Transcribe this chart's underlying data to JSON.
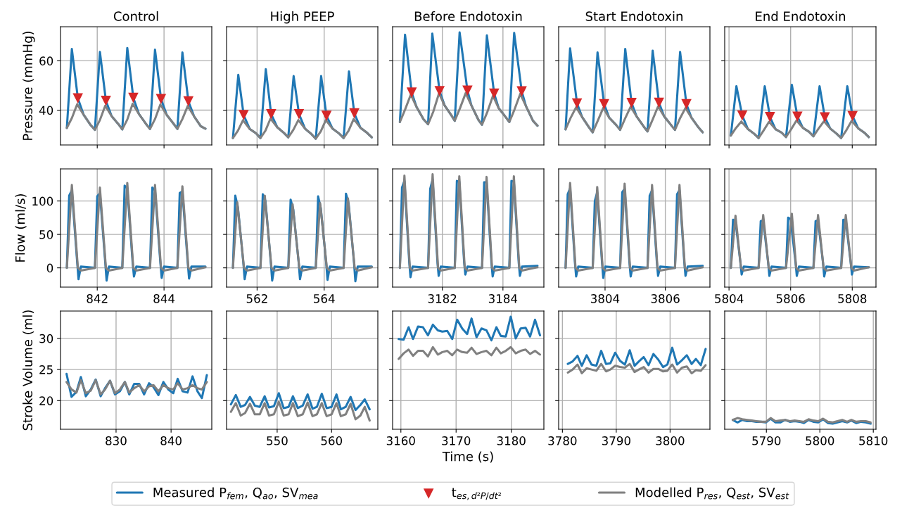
{
  "chart_data": [
    {
      "type": "line",
      "title": "Control",
      "ylabel": "Pressure (mmHg)",
      "xlim": [
        840.9,
        845.43
      ],
      "ylim": [
        25.9,
        73.8
      ],
      "xticks": [
        842,
        844
      ],
      "yticks": [
        40,
        60
      ],
      "grid": true,
      "tick_labels": "y",
      "legend": "bottom",
      "series": [
        {
          "name": "Measured P$_{fem}$, Q$_{ao}$, SV$_{mea}$",
          "color": "#1f77b4",
          "x": [
            841.09,
            841.24,
            841.42,
            841.59,
            841.79,
            841.93,
            842.08,
            842.26,
            842.43,
            842.63,
            842.75,
            842.9,
            843.08,
            843.25,
            843.45,
            843.58,
            843.73,
            843.91,
            844.08,
            844.28,
            844.4,
            844.55,
            844.73,
            844.9,
            845.1,
            845.24
          ],
          "values": [
            32.8,
            64.8,
            44.8,
            38.2,
            34.2,
            32.0,
            63.6,
            43.8,
            37.6,
            34.4,
            32.2,
            65.2,
            45.0,
            38.4,
            34.6,
            32.4,
            64.5,
            44.5,
            38.1,
            34.6,
            32.4,
            63.4,
            43.6,
            37.5,
            33.5,
            32.5
          ]
        },
        {
          "name": "t$_{es,d²P/dt²}$",
          "type": "scatter",
          "marker": "triangle",
          "color": "#d62728",
          "x": [
            841.42,
            842.26,
            843.08,
            843.91,
            844.73
          ],
          "values": [
            44.8,
            43.8,
            45.0,
            44.5,
            43.6
          ]
        },
        {
          "name": "Modelled P$_{res}$, Q$_{est}$, SV$_{est}$",
          "color": "#808080",
          "x": [
            841.09,
            841.24,
            841.4,
            841.59,
            841.79,
            841.93,
            842.08,
            842.24,
            842.43,
            842.63,
            842.75,
            842.9,
            843.06,
            843.25,
            843.45,
            843.58,
            843.73,
            843.89,
            844.08,
            844.28,
            844.4,
            844.55,
            844.71,
            844.9,
            845.1,
            845.24
          ],
          "values": [
            32.8,
            36.8,
            42.4,
            38.2,
            34.2,
            32.0,
            36.0,
            41.8,
            37.6,
            34.4,
            32.2,
            36.2,
            42.6,
            38.4,
            34.6,
            32.4,
            36.4,
            42.3,
            38.1,
            34.6,
            32.4,
            36.4,
            41.7,
            37.5,
            33.5,
            32.5
          ]
        }
      ]
    },
    {
      "type": "line",
      "title": "High PEEP",
      "xlim": [
        561.09,
        565.6
      ],
      "ylim": [
        25.9,
        73.8
      ],
      "xticks": [
        562,
        564
      ],
      "yticks": [
        40,
        60
      ],
      "grid": true,
      "tick_labels": false,
      "series": [
        {
          "color": "#1f77b4",
          "x": [
            561.28,
            561.44,
            561.6,
            561.78,
            561.98,
            562.1,
            562.26,
            562.42,
            562.6,
            562.8,
            562.93,
            563.09,
            563.25,
            563.43,
            563.63,
            563.75,
            563.91,
            564.07,
            564.25,
            564.45,
            564.58,
            564.74,
            564.9,
            565.08,
            565.28,
            565.42
          ],
          "values": [
            28.7,
            54.3,
            38.0,
            32.4,
            30.5,
            28.7,
            56.6,
            38.4,
            33.1,
            30.8,
            29.0,
            53.8,
            38.4,
            32.5,
            30.2,
            28.4,
            53.8,
            37.7,
            32.5,
            30.5,
            28.7,
            55.7,
            38.7,
            32.9,
            30.8,
            29.0
          ]
        },
        {
          "type": "scatter",
          "marker": "triangle",
          "color": "#d62728",
          "x": [
            561.6,
            562.42,
            563.25,
            564.07,
            564.9
          ],
          "values": [
            38.0,
            38.4,
            38.4,
            37.7,
            38.7
          ]
        },
        {
          "color": "#808080",
          "x": [
            561.28,
            561.43,
            561.58,
            561.78,
            561.98,
            562.1,
            562.25,
            562.4,
            562.6,
            562.8,
            562.93,
            563.08,
            563.23,
            563.43,
            563.63,
            563.75,
            563.9,
            564.05,
            564.25,
            564.45,
            564.58,
            564.73,
            564.88,
            565.08,
            565.28,
            565.42
          ],
          "values": [
            28.7,
            31.7,
            35.9,
            32.4,
            30.5,
            28.7,
            31.7,
            36.6,
            33.1,
            30.8,
            29.0,
            32.0,
            36.0,
            32.5,
            30.2,
            28.4,
            31.4,
            36.0,
            32.5,
            30.5,
            28.7,
            31.7,
            36.4,
            32.9,
            30.8,
            29.0
          ]
        }
      ]
    },
    {
      "type": "line",
      "title": "Before Endotoxin",
      "xlim": [
        3180.36,
        3185.35
      ],
      "ylim": [
        25.9,
        73.8
      ],
      "xticks": [
        3182,
        3184
      ],
      "yticks": [
        40,
        60
      ],
      "grid": true,
      "tick_labels": false,
      "series": [
        {
          "color": "#1f77b4",
          "x": [
            3180.6,
            3180.77,
            3180.99,
            3181.15,
            3181.38,
            3181.53,
            3181.67,
            3181.91,
            3182.08,
            3182.31,
            3182.41,
            3182.57,
            3182.83,
            3182.96,
            3183.19,
            3183.31,
            3183.47,
            3183.71,
            3183.86,
            3184.09,
            3184.21,
            3184.37,
            3184.62,
            3184.76,
            3184.99,
            3185.14
          ],
          "values": [
            35.2,
            70.6,
            47.1,
            41.3,
            36.3,
            34.3,
            71.0,
            47.7,
            41.8,
            37.7,
            35.7,
            71.5,
            47.9,
            41.9,
            36.1,
            34.1,
            70.3,
            46.7,
            40.8,
            37.2,
            35.2,
            71.3,
            47.6,
            41.6,
            35.7,
            33.7
          ]
        },
        {
          "type": "scatter",
          "marker": "triangle",
          "color": "#d62728",
          "x": [
            3180.99,
            3181.91,
            3182.83,
            3183.71,
            3184.62
          ],
          "values": [
            47.1,
            47.7,
            47.9,
            46.7,
            47.6
          ]
        },
        {
          "color": "#808080",
          "x": [
            3180.6,
            3180.77,
            3180.96,
            3181.15,
            3181.38,
            3181.53,
            3181.7,
            3181.89,
            3182.08,
            3182.31,
            3182.41,
            3182.58,
            3182.77,
            3182.96,
            3183.19,
            3183.31,
            3183.48,
            3183.67,
            3183.86,
            3184.09,
            3184.21,
            3184.38,
            3184.57,
            3184.76,
            3184.99,
            3185.14
          ],
          "values": [
            35.2,
            40.2,
            46.3,
            41.3,
            36.3,
            34.3,
            39.3,
            46.8,
            41.8,
            37.7,
            35.7,
            40.7,
            46.9,
            41.9,
            36.1,
            34.1,
            39.1,
            45.8,
            40.8,
            37.2,
            35.2,
            40.2,
            46.6,
            41.6,
            35.7,
            33.7
          ]
        }
      ]
    },
    {
      "type": "line",
      "title": "Start Endotoxin",
      "xlim": [
        3802.46,
        3807.48
      ],
      "ylim": [
        25.9,
        73.8
      ],
      "xticks": [
        3804,
        3806
      ],
      "yticks": [
        40,
        60
      ],
      "grid": true,
      "tick_labels": false,
      "series": [
        {
          "color": "#1f77b4",
          "x": [
            3802.69,
            3802.84,
            3803.07,
            3803.24,
            3803.47,
            3803.59,
            3803.75,
            3803.97,
            3804.14,
            3804.37,
            3804.5,
            3804.67,
            3804.88,
            3805.05,
            3805.28,
            3805.41,
            3805.58,
            3805.79,
            3805.96,
            3806.19,
            3806.32,
            3806.49,
            3806.7,
            3806.87,
            3807.1,
            3807.24
          ],
          "values": [
            32.2,
            65.0,
            42.7,
            37.2,
            33.0,
            31.0,
            63.4,
            42.4,
            36.9,
            34.0,
            32.0,
            64.8,
            42.9,
            37.4,
            33.4,
            31.4,
            64.1,
            43.0,
            37.5,
            34.0,
            32.0,
            63.6,
            42.4,
            36.9,
            33.0,
            31.0
          ]
        },
        {
          "type": "scatter",
          "marker": "triangle",
          "color": "#d62728",
          "x": [
            3803.07,
            3803.97,
            3804.88,
            3805.79,
            3806.7
          ],
          "values": [
            42.7,
            42.4,
            42.9,
            43.0,
            42.4
          ]
        },
        {
          "color": "#808080",
          "x": [
            3802.69,
            3802.85,
            3803.04,
            3803.24,
            3803.47,
            3803.59,
            3803.75,
            3803.94,
            3804.14,
            3804.37,
            3804.5,
            3804.66,
            3804.85,
            3805.05,
            3805.28,
            3805.41,
            3805.57,
            3805.76,
            3805.96,
            3806.19,
            3806.32,
            3806.48,
            3806.67,
            3806.87,
            3807.1,
            3807.24
          ],
          "values": [
            32.2,
            36.7,
            41.2,
            37.2,
            33.0,
            31.0,
            35.5,
            40.9,
            36.9,
            34.0,
            32.0,
            36.5,
            41.4,
            37.4,
            33.4,
            31.4,
            35.9,
            41.5,
            37.5,
            34.0,
            32.0,
            36.5,
            40.9,
            36.9,
            33.0,
            31.0
          ]
        }
      ]
    },
    {
      "type": "line",
      "title": "End Endotoxin",
      "xlim": [
        5803.86,
        5808.77
      ],
      "ylim": [
        25.9,
        73.8
      ],
      "xticks": [
        5804,
        5806,
        5808
      ],
      "yticks": [
        40,
        60
      ],
      "grid": true,
      "tick_labels": false,
      "series": [
        {
          "color": "#1f77b4",
          "x": [
            5804.06,
            5804.24,
            5804.43,
            5804.61,
            5804.81,
            5804.96,
            5805.16,
            5805.33,
            5805.51,
            5805.71,
            5805.85,
            5806.04,
            5806.22,
            5806.4,
            5806.6,
            5806.74,
            5806.94,
            5807.11,
            5807.29,
            5807.49,
            5807.64,
            5807.84,
            5808.01,
            5808.19,
            5808.39,
            5808.54
          ],
          "values": [
            29.7,
            49.7,
            37.8,
            32.4,
            30.5,
            28.7,
            49.7,
            37.2,
            32.3,
            30.9,
            29.1,
            50.3,
            37.4,
            32.8,
            31.2,
            29.4,
            49.7,
            37.1,
            32.5,
            30.5,
            28.7,
            49.7,
            37.6,
            32.7,
            30.9,
            29.1
          ]
        },
        {
          "type": "scatter",
          "marker": "triangle",
          "color": "#d62728",
          "x": [
            5804.43,
            5805.33,
            5806.22,
            5807.11,
            5808.01
          ],
          "values": [
            37.8,
            37.2,
            37.4,
            37.1,
            37.6
          ]
        },
        {
          "color": "#808080",
          "x": [
            5804.06,
            5804.22,
            5804.4,
            5804.61,
            5804.81,
            5804.96,
            5805.12,
            5805.3,
            5805.51,
            5805.71,
            5805.85,
            5806.01,
            5806.19,
            5806.4,
            5806.6,
            5806.74,
            5806.9,
            5807.08,
            5807.29,
            5807.49,
            5807.64,
            5807.8,
            5807.98,
            5808.19,
            5808.39,
            5808.54
          ],
          "values": [
            29.7,
            32.7,
            35.4,
            32.4,
            30.5,
            28.7,
            31.7,
            35.3,
            32.3,
            30.9,
            29.1,
            32.1,
            35.8,
            32.8,
            31.2,
            29.4,
            32.4,
            35.5,
            32.5,
            30.5,
            28.7,
            31.7,
            35.7,
            32.7,
            30.9,
            29.1
          ]
        }
      ]
    },
    {
      "type": "line",
      "ylabel": "Flow (ml/s)",
      "xlim": [
        840.9,
        845.43
      ],
      "ylim": [
        -28.8,
        148
      ],
      "xticks": [
        842,
        844
      ],
      "yticks": [
        0,
        50,
        100
      ],
      "grid": true,
      "series": [
        {
          "color": "#1f77b4",
          "x": [
            841.09,
            841.16,
            841.24,
            841.4,
            841.44,
            841.51,
            841.93,
            842.0,
            842.08,
            842.24,
            842.28,
            842.35,
            842.75,
            842.82,
            842.9,
            843.06,
            843.1,
            843.17,
            843.58,
            843.65,
            843.73,
            843.89,
            843.93,
            844.0,
            844.4,
            844.47,
            844.55,
            844.71,
            844.75,
            844.82,
            845.24
          ],
          "values": [
            0,
            108,
            116,
            8,
            -17,
            2,
            0,
            107,
            112,
            8,
            -19,
            2,
            0,
            123,
            119,
            8,
            -13,
            2,
            0,
            120,
            116,
            8,
            -15,
            2,
            0,
            112,
            114,
            8,
            -16,
            2,
            2
          ]
        },
        {
          "color": "#808080",
          "x": [
            841.09,
            841.24,
            841.42,
            841.51,
            841.93,
            842.08,
            842.26,
            842.35,
            842.75,
            842.9,
            843.08,
            843.17,
            843.58,
            843.73,
            843.91,
            844.0,
            844.4,
            844.55,
            844.73,
            844.82,
            845.24
          ],
          "values": [
            0,
            124,
            0,
            -4,
            0,
            120,
            0,
            -4,
            0,
            127,
            0,
            -4,
            0,
            124,
            0,
            -4,
            0,
            122,
            0,
            -4,
            1
          ]
        }
      ]
    },
    {
      "type": "line",
      "xlim": [
        561.09,
        565.6
      ],
      "ylim": [
        -28.8,
        148
      ],
      "xticks": [
        562,
        564
      ],
      "yticks": [
        0,
        50,
        100
      ],
      "grid": true,
      "tick_labels": "x",
      "series": [
        {
          "color": "#1f77b4",
          "x": [
            561.28,
            561.35,
            561.43,
            561.59,
            561.63,
            561.7,
            562.1,
            562.17,
            562.25,
            562.41,
            562.45,
            562.52,
            562.93,
            563.0,
            563.08,
            563.24,
            563.28,
            563.35,
            563.75,
            563.82,
            563.9,
            564.06,
            564.1,
            564.17,
            564.58,
            564.65,
            564.73,
            564.89,
            564.93,
            565.0,
            565.42
          ],
          "values": [
            0,
            108,
            90,
            8,
            -17,
            2,
            0,
            110,
            100,
            8,
            -19,
            2,
            0,
            102,
            87,
            8,
            -17,
            2,
            0,
            107,
            89,
            8,
            -18,
            2,
            0,
            111,
            96,
            8,
            -20,
            2,
            2
          ]
        },
        {
          "color": "#808080",
          "x": [
            561.28,
            561.41,
            561.61,
            561.7,
            562.1,
            562.23,
            562.43,
            562.52,
            562.93,
            563.06,
            563.26,
            563.35,
            563.75,
            563.88,
            564.08,
            564.17,
            564.58,
            564.71,
            564.91,
            565.0,
            565.42
          ],
          "values": [
            0,
            98,
            0,
            -4,
            0,
            108,
            0,
            -4,
            0,
            95,
            0,
            -4,
            0,
            97,
            0,
            -4,
            0,
            104,
            0,
            -4,
            1
          ]
        }
      ]
    },
    {
      "type": "line",
      "xlim": [
        3180.36,
        3185.35
      ],
      "ylim": [
        -28.8,
        148
      ],
      "xticks": [
        3182,
        3184
      ],
      "yticks": [
        0,
        50,
        100
      ],
      "grid": true,
      "tick_labels": "x",
      "series": [
        {
          "color": "#1f77b4",
          "x": [
            3180.6,
            3180.67,
            3180.75,
            3180.91,
            3180.95,
            3181.02,
            3181.53,
            3181.6,
            3181.68,
            3181.84,
            3181.88,
            3181.95,
            3182.41,
            3182.48,
            3182.56,
            3182.72,
            3182.76,
            3182.83,
            3183.31,
            3183.38,
            3183.46,
            3183.62,
            3183.66,
            3183.73,
            3184.21,
            3184.28,
            3184.36,
            3184.52,
            3184.56,
            3184.63,
            3185.14
          ],
          "values": [
            0,
            120,
            130,
            8,
            -14,
            2,
            0,
            118,
            132,
            8,
            -12,
            2,
            0,
            130,
            129,
            8,
            -10,
            2,
            0,
            128,
            128,
            8,
            -13,
            2,
            0,
            130,
            129,
            8,
            -12,
            2,
            3
          ]
        },
        {
          "color": "#808080",
          "x": [
            3180.6,
            3180.75,
            3180.93,
            3181.02,
            3181.53,
            3181.68,
            3181.86,
            3181.95,
            3182.41,
            3182.56,
            3182.74,
            3182.83,
            3183.31,
            3183.46,
            3183.64,
            3183.73,
            3184.21,
            3184.36,
            3184.54,
            3184.63,
            3185.14
          ],
          "values": [
            0,
            138,
            0,
            -4,
            0,
            140,
            0,
            -4,
            0,
            137,
            0,
            -4,
            0,
            136,
            0,
            -4,
            0,
            137,
            0,
            -4,
            1
          ]
        }
      ]
    },
    {
      "type": "line",
      "xlim": [
        3802.46,
        3807.48
      ],
      "ylim": [
        -28.8,
        148
      ],
      "xticks": [
        3804,
        3806
      ],
      "yticks": [
        0,
        50,
        100
      ],
      "grid": true,
      "tick_labels": "x",
      "series": [
        {
          "color": "#1f77b4",
          "x": [
            3802.69,
            3802.76,
            3802.84,
            3803.0,
            3803.04,
            3803.11,
            3803.59,
            3803.66,
            3803.74,
            3803.9,
            3803.94,
            3804.01,
            3804.5,
            3804.57,
            3804.65,
            3804.81,
            3804.85,
            3804.92,
            3805.41,
            3805.48,
            3805.56,
            3805.72,
            3805.76,
            3805.83,
            3806.32,
            3806.39,
            3806.47,
            3806.63,
            3806.67,
            3806.74,
            3807.24
          ],
          "values": [
            0,
            110,
            119,
            8,
            -13,
            2,
            0,
            100,
            113,
            8,
            -15,
            2,
            0,
            113,
            118,
            8,
            -13,
            2,
            0,
            108,
            116,
            8,
            -12,
            2,
            0,
            110,
            116,
            8,
            -12,
            2,
            3
          ]
        },
        {
          "color": "#808080",
          "x": [
            3802.69,
            3802.84,
            3803.02,
            3803.11,
            3803.59,
            3803.74,
            3803.92,
            3804.01,
            3804.5,
            3804.65,
            3804.83,
            3804.92,
            3805.41,
            3805.56,
            3805.74,
            3805.83,
            3806.32,
            3806.47,
            3806.65,
            3806.74,
            3807.24
          ],
          "values": [
            0,
            127,
            0,
            -4,
            0,
            121,
            0,
            -4,
            0,
            126,
            0,
            -4,
            0,
            124,
            0,
            -4,
            0,
            124,
            0,
            -4,
            1
          ]
        }
      ]
    },
    {
      "type": "line",
      "xlim": [
        5803.86,
        5808.77
      ],
      "ylim": [
        -28.8,
        148
      ],
      "xticks": [
        5804,
        5806,
        5808
      ],
      "yticks": [
        0,
        50,
        100
      ],
      "grid": true,
      "tick_labels": "x",
      "series": [
        {
          "color": "#1f77b4",
          "x": [
            5804.06,
            5804.13,
            5804.21,
            5804.37,
            5804.41,
            5804.48,
            5804.96,
            5805.03,
            5805.11,
            5805.27,
            5805.31,
            5805.38,
            5805.85,
            5805.92,
            5806.0,
            5806.16,
            5806.2,
            5806.27,
            5806.74,
            5806.81,
            5806.89,
            5807.05,
            5807.09,
            5807.16,
            5807.64,
            5807.71,
            5807.79,
            5807.95,
            5807.99,
            5808.06,
            5808.54
          ],
          "values": [
            0,
            72,
            70,
            8,
            -10,
            2,
            0,
            70,
            71,
            8,
            -12,
            2,
            0,
            75,
            73,
            8,
            -12,
            2,
            0,
            70,
            71,
            8,
            -13,
            2,
            0,
            72,
            71,
            8,
            -10,
            2,
            1
          ]
        },
        {
          "color": "#808080",
          "x": [
            5804.06,
            5804.21,
            5804.39,
            5804.48,
            5804.96,
            5805.11,
            5805.29,
            5805.38,
            5805.85,
            5806.04,
            5806.18,
            5806.27,
            5806.74,
            5806.89,
            5807.07,
            5807.16,
            5807.64,
            5807.79,
            5807.97,
            5808.06,
            5808.54
          ],
          "values": [
            0,
            78,
            0,
            -4,
            0,
            79,
            0,
            -4,
            0,
            81,
            0,
            -4,
            0,
            79,
            0,
            -4,
            0,
            79,
            0,
            -4,
            1
          ]
        }
      ]
    },
    {
      "type": "line",
      "ylabel": "Stroke Volume (ml)",
      "xlim": [
        819.9,
        847.4
      ],
      "ylim": [
        15.4,
        34.4
      ],
      "xticks": [
        830,
        840
      ],
      "yticks": [
        20,
        25,
        30
      ],
      "grid": true,
      "x": [
        821.0,
        821.9,
        822.8,
        823.6,
        824.5,
        825.4,
        826.3,
        827.2,
        828.0,
        828.9,
        829.8,
        830.7,
        831.6,
        832.4,
        833.3,
        834.2,
        835.1,
        836.0,
        836.8,
        837.7,
        838.6,
        839.5,
        840.4,
        841.2,
        842.1,
        843.0,
        843.9,
        844.8,
        845.6,
        846.5
      ],
      "series": [
        {
          "color": "#1f77b4",
          "values": [
            24.3,
            20.6,
            21.4,
            23.8,
            20.7,
            21.8,
            23.4,
            20.7,
            22.0,
            23.2,
            21.0,
            21.5,
            23.0,
            21.0,
            22.7,
            22.7,
            21.0,
            22.8,
            22.2,
            20.9,
            23.0,
            21.8,
            21.2,
            23.5,
            21.5,
            21.3,
            23.9,
            21.5,
            20.4,
            24.1
          ]
        },
        {
          "color": "#808080",
          "values": [
            23.0,
            21.8,
            21.3,
            23.3,
            21.2,
            21.6,
            23.3,
            21.0,
            21.8,
            23.2,
            21.2,
            21.8,
            23.0,
            21.3,
            22.0,
            22.5,
            21.5,
            22.3,
            22.5,
            21.5,
            22.5,
            22.0,
            21.8,
            22.8,
            21.8,
            22.0,
            22.5,
            22.0,
            21.8,
            23.0
          ]
        }
      ]
    },
    {
      "type": "line",
      "xlim": [
        540.7,
        568.5
      ],
      "ylim": [
        15.4,
        34.4
      ],
      "xticks": [
        550,
        560
      ],
      "yticks": [
        20,
        25,
        30
      ],
      "grid": true,
      "tick_labels": "x",
      "x": [
        541.5,
        542.4,
        543.3,
        544.1,
        545.0,
        545.9,
        546.8,
        547.7,
        548.5,
        549.4,
        550.3,
        551.2,
        552.1,
        552.9,
        553.8,
        554.7,
        555.6,
        556.5,
        557.3,
        558.2,
        559.1,
        560.0,
        560.9,
        561.7,
        562.6,
        563.5,
        564.4,
        565.3,
        566.1,
        567.0
      ],
      "series": [
        {
          "color": "#1f77b4",
          "values": [
            19.4,
            20.9,
            19.0,
            19.3,
            20.6,
            19.2,
            19.0,
            20.7,
            18.9,
            19.1,
            21.2,
            18.8,
            19.0,
            20.7,
            18.8,
            19.2,
            21.0,
            18.7,
            19.0,
            21.1,
            18.8,
            19.0,
            21.0,
            18.6,
            19.0,
            20.6,
            18.5,
            19.3,
            20.2,
            18.6
          ]
        },
        {
          "color": "#808080",
          "values": [
            18.2,
            19.6,
            17.6,
            18.0,
            19.5,
            17.8,
            17.8,
            19.6,
            17.6,
            17.8,
            19.8,
            17.6,
            17.8,
            19.6,
            17.5,
            17.8,
            19.7,
            17.5,
            17.8,
            19.6,
            17.5,
            17.8,
            19.6,
            17.5,
            17.8,
            19.5,
            17.0,
            17.6,
            19.0,
            16.8
          ]
        }
      ]
    },
    {
      "type": "line",
      "xlabel": "Time (s)",
      "xlim": [
        3158.5,
        3185.9
      ],
      "ylim": [
        15.4,
        34.4
      ],
      "xticks": [
        3160,
        3170,
        3180
      ],
      "yticks": [
        20,
        25,
        30
      ],
      "grid": true,
      "tick_labels": "x",
      "x": [
        3159.6,
        3160.5,
        3161.4,
        3162.2,
        3163.1,
        3164.0,
        3164.9,
        3165.8,
        3166.7,
        3167.5,
        3168.4,
        3169.3,
        3170.2,
        3171.1,
        3172.0,
        3172.8,
        3173.7,
        3174.6,
        3175.5,
        3176.4,
        3177.3,
        3178.1,
        3179.0,
        3179.9,
        3180.8,
        3181.7,
        3182.6,
        3183.4,
        3184.3,
        3185.2
      ],
      "series": [
        {
          "color": "#1f77b4",
          "values": [
            29.9,
            29.8,
            31.8,
            29.9,
            31.9,
            31.8,
            30.5,
            32.2,
            31.3,
            31.1,
            31.2,
            29.9,
            33.0,
            31.6,
            30.7,
            33.2,
            30.2,
            31.6,
            31.3,
            29.7,
            31.8,
            30.4,
            30.3,
            33.5,
            30.0,
            31.6,
            31.7,
            30.3,
            33.0,
            30.5
          ]
        },
        {
          "color": "#808080",
          "values": [
            26.7,
            27.6,
            28.2,
            27.2,
            28.0,
            28.0,
            27.1,
            28.6,
            27.4,
            27.8,
            28.0,
            27.3,
            28.2,
            27.8,
            27.7,
            28.5,
            27.5,
            27.8,
            28.0,
            27.3,
            28.5,
            27.6,
            28.0,
            28.6,
            27.6,
            28.0,
            28.2,
            27.5,
            28.0,
            27.4
          ]
        }
      ]
    },
    {
      "type": "line",
      "xlim": [
        3779.3,
        3807.4
      ],
      "ylim": [
        15.4,
        34.4
      ],
      "xticks": [
        3780,
        3790,
        3800
      ],
      "yticks": [
        20,
        25,
        30
      ],
      "grid": true,
      "tick_labels": "x",
      "x": [
        3781.0,
        3781.9,
        3782.8,
        3783.6,
        3784.5,
        3785.4,
        3786.3,
        3787.2,
        3788.1,
        3788.9,
        3789.8,
        3790.7,
        3791.6,
        3792.5,
        3793.4,
        3794.2,
        3795.1,
        3796.0,
        3796.9,
        3797.8,
        3798.7,
        3799.5,
        3800.4,
        3801.3,
        3802.2,
        3803.1,
        3804.0,
        3804.8,
        3805.7,
        3806.6
      ],
      "series": [
        {
          "color": "#1f77b4",
          "values": [
            25.9,
            26.3,
            27.2,
            25.6,
            27.3,
            25.8,
            25.6,
            28.0,
            25.9,
            26.0,
            27.7,
            26.4,
            25.8,
            28.1,
            25.6,
            26.3,
            27.0,
            25.7,
            27.5,
            26.6,
            25.4,
            25.8,
            28.5,
            25.8,
            26.5,
            27.3,
            25.9,
            26.7,
            25.7,
            28.3
          ]
        },
        {
          "color": "#808080",
          "values": [
            24.5,
            25.0,
            25.8,
            24.4,
            25.2,
            25.0,
            24.8,
            25.9,
            24.7,
            25.0,
            25.6,
            25.4,
            25.3,
            25.9,
            24.6,
            25.0,
            25.4,
            24.5,
            25.1,
            25.1,
            24.7,
            24.8,
            25.8,
            24.5,
            25.3,
            25.5,
            24.4,
            24.9,
            24.8,
            25.7
          ]
        }
      ]
    },
    {
      "type": "line",
      "xlim": [
        5782.2,
        5810.5
      ],
      "ylim": [
        15.4,
        34.4
      ],
      "xticks": [
        5790,
        5800,
        5810
      ],
      "yticks": [
        20,
        25,
        30
      ],
      "grid": true,
      "tick_labels": "x",
      "x": [
        5783.7,
        5784.6,
        5785.5,
        5786.4,
        5787.3,
        5788.1,
        5789.0,
        5789.9,
        5790.8,
        5791.7,
        5792.6,
        5793.5,
        5794.4,
        5795.3,
        5796.2,
        5797.0,
        5797.9,
        5798.8,
        5799.7,
        5800.6,
        5801.5,
        5802.4,
        5803.3,
        5804.2,
        5805.1,
        5805.9,
        5806.8,
        5807.7,
        5808.6,
        5809.5
      ],
      "series": [
        {
          "color": "#1f77b4",
          "values": [
            16.9,
            16.5,
            16.9,
            16.7,
            16.7,
            16.6,
            16.6,
            16.5,
            17.1,
            16.5,
            16.5,
            16.9,
            16.6,
            16.7,
            16.6,
            16.4,
            16.9,
            16.6,
            16.5,
            17.0,
            16.4,
            16.3,
            16.5,
            16.7,
            16.5,
            16.8,
            16.4,
            16.6,
            16.5,
            16.3
          ]
        },
        {
          "color": "#808080",
          "values": [
            16.9,
            17.2,
            17.0,
            16.9,
            16.8,
            16.7,
            16.6,
            16.6,
            17.2,
            16.7,
            16.8,
            16.9,
            16.7,
            16.8,
            16.7,
            16.6,
            17.0,
            16.8,
            16.7,
            17.1,
            16.6,
            16.5,
            16.7,
            16.9,
            16.6,
            16.9,
            16.6,
            16.7,
            16.7,
            16.5
          ]
        }
      ]
    }
  ]
}
